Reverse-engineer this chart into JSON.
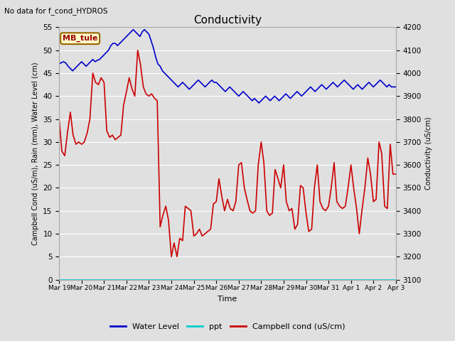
{
  "title": "Conductivity",
  "top_left_text": "No data for f_cond_HYDROS",
  "box_label": "MB_tule",
  "xlabel": "Time",
  "ylabel_left": "Campbell Cond (uS/m), Rain (mm), Water Level (cm)",
  "ylabel_right": "Conductivity (uS/cm)",
  "ylim_left": [
    0,
    55
  ],
  "ylim_right": [
    3100,
    4200
  ],
  "xtick_labels": [
    "Mar 19",
    "Mar 20",
    "Mar 21",
    "Mar 22",
    "Mar 23",
    "Mar 24",
    "Mar 25",
    "Mar 26",
    "Mar 27",
    "Mar 28",
    "Mar 29",
    "Mar 30",
    "Mar 31",
    "Apr 1",
    "Apr 2",
    "Apr 3"
  ],
  "ytick_left": [
    0,
    5,
    10,
    15,
    20,
    25,
    30,
    35,
    40,
    45,
    50,
    55
  ],
  "ytick_right": [
    3100,
    3200,
    3300,
    3400,
    3500,
    3600,
    3700,
    3800,
    3900,
    4000,
    4100,
    4200
  ],
  "background_color": "#e0e0e0",
  "plot_bg_color": "#e0e0e0",
  "grid_color": "#ffffff",
  "water_level_color": "#0000cc",
  "ppt_color": "#00cccc",
  "campbell_color": "#cc0000",
  "water_level_x": [
    0.0,
    0.1,
    0.2,
    0.3,
    0.4,
    0.5,
    0.6,
    0.7,
    0.8,
    0.9,
    1.0,
    1.1,
    1.2,
    1.3,
    1.4,
    1.5,
    1.6,
    1.7,
    1.8,
    1.9,
    2.0,
    2.1,
    2.2,
    2.3,
    2.4,
    2.5,
    2.6,
    2.7,
    2.8,
    2.9,
    3.0,
    3.1,
    3.2,
    3.3,
    3.4,
    3.5,
    3.6,
    3.7,
    3.8,
    3.9,
    4.0,
    4.1,
    4.2,
    4.3,
    4.4,
    4.5,
    4.6,
    4.7,
    4.8,
    4.9,
    5.0,
    5.1,
    5.2,
    5.3,
    5.4,
    5.5,
    5.6,
    5.7,
    5.8,
    5.9,
    6.0,
    6.1,
    6.2,
    6.3,
    6.4,
    6.5,
    6.6,
    6.7,
    6.8,
    6.9,
    7.0,
    7.1,
    7.2,
    7.3,
    7.4,
    7.5,
    7.6,
    7.7,
    7.8,
    7.9,
    8.0,
    8.1,
    8.2,
    8.3,
    8.4,
    8.5,
    8.6,
    8.7,
    8.8,
    8.9,
    9.0,
    9.1,
    9.2,
    9.3,
    9.4,
    9.5,
    9.6,
    9.7,
    9.8,
    9.9,
    10.0,
    10.1,
    10.2,
    10.3,
    10.4,
    10.5,
    10.6,
    10.7,
    10.8,
    10.9,
    11.0,
    11.1,
    11.2,
    11.3,
    11.4,
    11.5,
    11.6,
    11.7,
    11.8,
    11.9,
    12.0,
    12.1,
    12.2,
    12.3,
    12.4,
    12.5,
    12.6,
    12.7,
    12.8,
    12.9,
    13.0,
    13.1,
    13.2,
    13.3,
    13.4,
    13.5,
    13.6,
    13.7,
    13.8,
    13.9,
    14.0,
    14.1,
    14.2,
    14.3,
    14.4,
    14.5,
    14.6,
    14.7,
    14.8,
    14.9,
    15.0
  ],
  "water_level_y": [
    47.0,
    47.3,
    47.5,
    47.2,
    46.5,
    46.0,
    45.5,
    46.0,
    46.5,
    47.0,
    47.5,
    47.0,
    46.5,
    47.0,
    47.5,
    48.0,
    47.5,
    47.8,
    48.0,
    48.5,
    49.0,
    49.5,
    50.0,
    51.0,
    51.5,
    51.5,
    51.0,
    51.5,
    52.0,
    52.5,
    53.0,
    53.5,
    54.0,
    54.5,
    54.0,
    53.5,
    53.0,
    54.0,
    54.5,
    54.0,
    53.5,
    52.0,
    50.5,
    48.5,
    47.0,
    46.5,
    45.5,
    45.0,
    44.5,
    44.0,
    43.5,
    43.0,
    42.5,
    42.0,
    42.5,
    43.0,
    42.5,
    42.0,
    41.5,
    42.0,
    42.5,
    43.0,
    43.5,
    43.0,
    42.5,
    42.0,
    42.5,
    43.0,
    43.5,
    43.0,
    43.0,
    42.5,
    42.0,
    41.5,
    41.0,
    41.5,
    42.0,
    41.5,
    41.0,
    40.5,
    40.0,
    40.5,
    41.0,
    40.5,
    40.0,
    39.5,
    39.0,
    39.5,
    39.0,
    38.5,
    39.0,
    39.5,
    40.0,
    39.5,
    39.0,
    39.5,
    40.0,
    39.5,
    39.0,
    39.5,
    40.0,
    40.5,
    40.0,
    39.5,
    40.0,
    40.5,
    41.0,
    40.5,
    40.0,
    40.5,
    41.0,
    41.5,
    42.0,
    41.5,
    41.0,
    41.5,
    42.0,
    42.5,
    42.0,
    41.5,
    42.0,
    42.5,
    43.0,
    42.5,
    42.0,
    42.5,
    43.0,
    43.5,
    43.0,
    42.5,
    42.0,
    41.5,
    42.0,
    42.5,
    42.0,
    41.5,
    42.0,
    42.5,
    43.0,
    42.5,
    42.0,
    42.5,
    43.0,
    43.5,
    43.0,
    42.5,
    42.0,
    42.5,
    42.0,
    42.0,
    42.0
  ],
  "campbell_x": [
    0.0,
    0.12,
    0.25,
    0.37,
    0.5,
    0.62,
    0.75,
    0.87,
    1.0,
    1.12,
    1.25,
    1.37,
    1.5,
    1.62,
    1.75,
    1.87,
    2.0,
    2.12,
    2.25,
    2.37,
    2.5,
    2.62,
    2.75,
    2.87,
    3.0,
    3.12,
    3.25,
    3.37,
    3.5,
    3.62,
    3.75,
    3.87,
    4.0,
    4.12,
    4.25,
    4.37,
    4.5,
    4.62,
    4.75,
    4.87,
    5.0,
    5.12,
    5.25,
    5.37,
    5.5,
    5.62,
    5.75,
    5.87,
    6.0,
    6.12,
    6.25,
    6.37,
    6.5,
    6.62,
    6.75,
    6.87,
    7.0,
    7.12,
    7.25,
    7.37,
    7.5,
    7.62,
    7.75,
    7.87,
    8.0,
    8.12,
    8.25,
    8.37,
    8.5,
    8.62,
    8.75,
    8.87,
    9.0,
    9.12,
    9.25,
    9.37,
    9.5,
    9.62,
    9.75,
    9.87,
    10.0,
    10.12,
    10.25,
    10.37,
    10.5,
    10.62,
    10.75,
    10.87,
    11.0,
    11.12,
    11.25,
    11.37,
    11.5,
    11.62,
    11.75,
    11.87,
    12.0,
    12.12,
    12.25,
    12.37,
    12.5,
    12.62,
    12.75,
    12.87,
    13.0,
    13.12,
    13.25,
    13.37,
    13.5,
    13.62,
    13.75,
    13.87,
    14.0,
    14.12,
    14.25,
    14.37,
    14.5,
    14.62,
    14.75,
    14.87,
    15.0
  ],
  "campbell_y": [
    35.0,
    28.0,
    27.0,
    32.0,
    36.5,
    31.5,
    29.5,
    30.0,
    29.5,
    30.0,
    32.0,
    35.0,
    45.0,
    43.0,
    42.5,
    44.0,
    43.0,
    32.5,
    31.0,
    31.5,
    30.5,
    31.0,
    31.5,
    38.0,
    41.0,
    44.0,
    41.5,
    40.0,
    50.0,
    47.0,
    42.0,
    40.5,
    40.0,
    40.5,
    39.5,
    39.0,
    11.5,
    14.0,
    16.0,
    13.0,
    5.0,
    8.0,
    5.0,
    9.0,
    8.5,
    16.0,
    15.5,
    15.0,
    9.5,
    10.0,
    11.0,
    9.5,
    10.0,
    10.5,
    11.0,
    16.5,
    17.0,
    22.0,
    18.0,
    15.0,
    17.5,
    15.5,
    15.0,
    17.0,
    25.0,
    25.5,
    20.0,
    17.5,
    15.0,
    14.5,
    15.0,
    25.0,
    30.0,
    25.5,
    15.0,
    14.0,
    14.5,
    24.0,
    22.0,
    20.0,
    25.0,
    17.0,
    15.0,
    15.5,
    11.0,
    12.0,
    20.5,
    20.0,
    14.5,
    10.5,
    11.0,
    20.0,
    25.0,
    17.0,
    15.5,
    15.0,
    16.0,
    20.0,
    25.5,
    17.0,
    16.0,
    15.5,
    16.0,
    20.0,
    25.0,
    20.0,
    15.5,
    10.0,
    15.5,
    20.0,
    26.5,
    23.0,
    17.0,
    17.5,
    30.0,
    27.5,
    16.0,
    15.5,
    29.5,
    23.0,
    23.0
  ]
}
